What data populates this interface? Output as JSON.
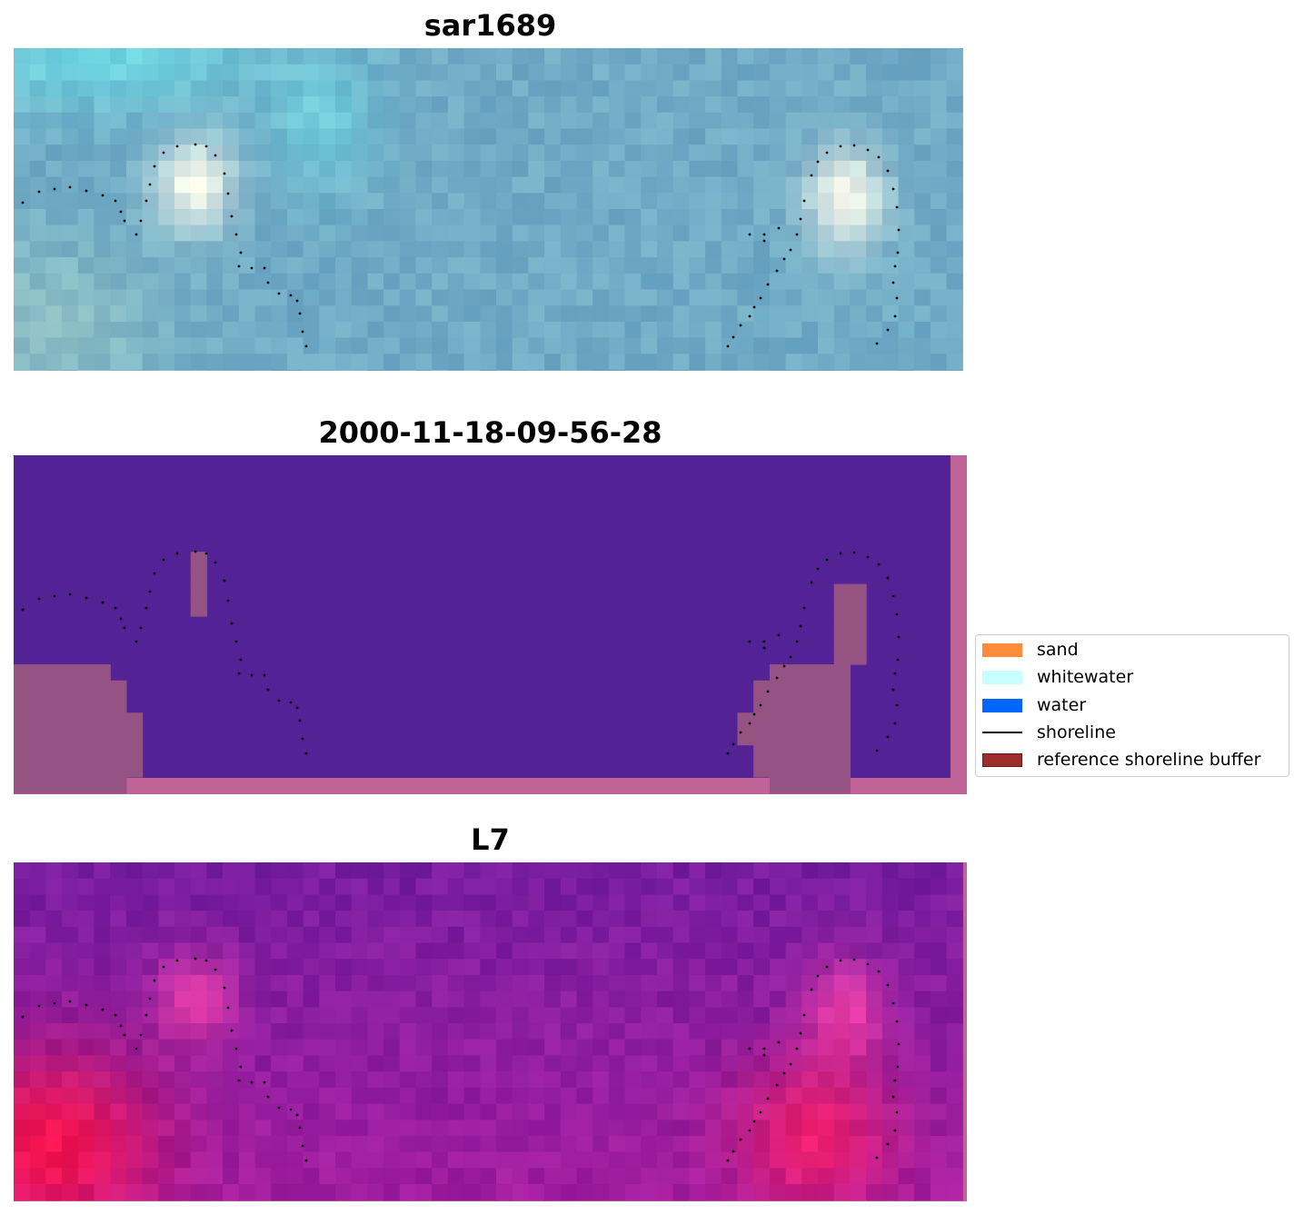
{
  "panels": [
    {
      "title": "sar1689",
      "kind": "rgb"
    },
    {
      "title": "2000-11-18-09-56-28",
      "kind": "classified"
    },
    {
      "title": "L7",
      "kind": "overlay"
    }
  ],
  "legend": {
    "items": [
      {
        "label": "sand",
        "color": "#ff8c3a",
        "kind": "patch"
      },
      {
        "label": "whitewater",
        "color": "#c8ffff",
        "kind": "patch"
      },
      {
        "label": "water",
        "color": "#0066ff",
        "kind": "patch"
      },
      {
        "label": "shoreline",
        "color": "#000000",
        "kind": "line"
      },
      {
        "label": "reference shoreline buffer",
        "color": "#9b2d2d",
        "kind": "patch"
      }
    ]
  },
  "colors": {
    "classified_water": "#532295",
    "buffer": "#c06498",
    "buffer_inner": "#955384"
  }
}
